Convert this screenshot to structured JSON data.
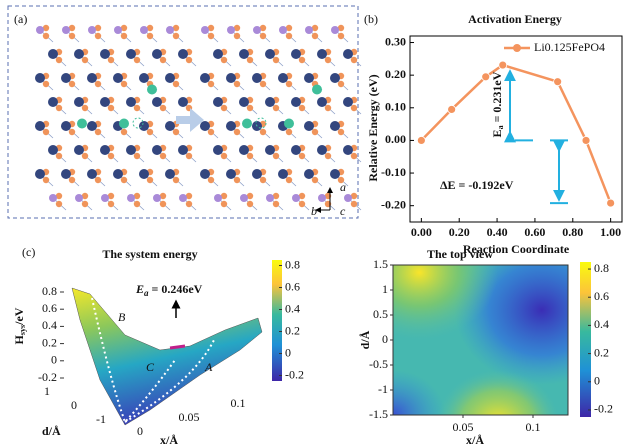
{
  "panel_a": {
    "label": "(a)",
    "axes": [
      "a",
      "b",
      "c"
    ]
  },
  "chart_data": {
    "type": "line",
    "label": "(b)",
    "title": "Activation Energy",
    "x_label": "Reaction Coordinate",
    "y_label": "Relative Energy (eV)",
    "x": [
      0,
      0.16,
      0.34,
      0.43,
      0.72,
      0.87,
      1.0
    ],
    "series": [
      {
        "name": "Li0.125FePO4",
        "color": "#f4945e",
        "values": [
          0,
          0.095,
          0.195,
          0.231,
          0.18,
          0.0,
          -0.192
        ]
      }
    ],
    "xlim": [
      -0.06,
      1.06
    ],
    "xticks": [
      {
        "value": 0,
        "label": "0.00"
      },
      {
        "value": 0.2,
        "label": "0.20"
      },
      {
        "value": 0.4,
        "label": "0.40"
      },
      {
        "value": 0.6,
        "label": "0.60"
      },
      {
        "value": 0.8,
        "label": "0.80"
      },
      {
        "value": 1,
        "label": "1.00"
      }
    ],
    "ylim": [
      -0.25,
      0.32
    ],
    "yticks": [
      {
        "value": 0.3,
        "label": "0.30"
      },
      {
        "value": 0.2,
        "label": "0.20"
      },
      {
        "value": 0.1,
        "label": "0.10"
      },
      {
        "value": 0,
        "label": "0.00"
      },
      {
        "value": -0.1,
        "label": "-0.10"
      },
      {
        "value": -0.2,
        "label": "-0.20"
      }
    ],
    "legend": "upper right",
    "annotations": {
      "ea": [
        "E",
        "a",
        " = 0.231eV"
      ],
      "de": "ΔE = -0.192eV"
    }
  },
  "panel_c": {
    "label": "(c)",
    "surface": {
      "title": "The system energy",
      "z_label": [
        "H",
        "sys",
        "/eV"
      ],
      "zlim": [
        -0.2,
        0.8
      ],
      "zticks": [
        0.8,
        0.6,
        0.4,
        0.2,
        0,
        -0.2
      ],
      "dlim": [
        -1,
        1
      ],
      "dticks": [
        1,
        0,
        -1
      ],
      "d_label": "d/Å",
      "xlim": [
        0,
        0.1
      ],
      "xticks": [
        0,
        0.05,
        0.1
      ],
      "x_label": "x/Å",
      "ea": [
        "E",
        "a",
        " = 0.246eV"
      ],
      "paths": [
        "A",
        "B",
        "C"
      ],
      "colorbar": {
        "lim": [
          -0.25,
          0.85
        ],
        "ticks": [
          0.8,
          0.6,
          0.4,
          0.2,
          0,
          -0.2
        ]
      }
    },
    "top_view": {
      "title": "The top view",
      "ylim": [
        -1.5,
        1.5
      ],
      "yticks": [
        1.5,
        1,
        0.5,
        0,
        -0.5,
        -1,
        -1.5
      ],
      "xlim": [
        0,
        0.125
      ],
      "xticks": [
        0.05,
        0.1
      ],
      "x_label": "x/Å",
      "y_label": "d/Å",
      "colorbar": {
        "lim": [
          -0.25,
          0.85
        ],
        "ticks": [
          0.8,
          0.6,
          0.4,
          0.2,
          0,
          -0.2
        ]
      }
    }
  }
}
